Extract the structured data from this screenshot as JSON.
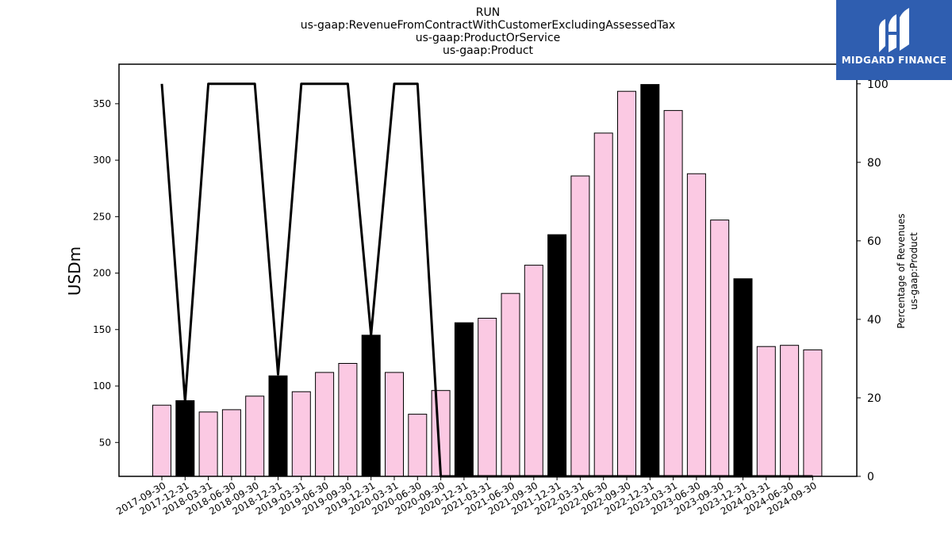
{
  "title_lines": [
    "RUN",
    "us-gaap:RevenueFromContractWithCustomerExcludingAssessedTax",
    "us-gaap:ProductOrService",
    "us-gaap:Product"
  ],
  "logo": {
    "text": "MIDGARD FINANCE",
    "icon": "midgard-logo-icon",
    "bg_color": "#2f5eb0"
  },
  "chart_data": {
    "type": "bar",
    "title": "RUN\nus-gaap:RevenueFromContractWithCustomerExcludingAssessedTax\nus-gaap:ProductOrService\nus-gaap:Product",
    "ylabel": "USDm",
    "y2label_lines": [
      "Percentage of Revenues",
      "us-gaap:Product"
    ],
    "ylim": [
      20,
      385
    ],
    "y2lim": [
      0,
      105
    ],
    "yticks": [
      50,
      100,
      150,
      200,
      250,
      300,
      350
    ],
    "y2ticks": [
      0,
      20,
      40,
      60,
      80,
      100
    ],
    "categories": [
      "2017-09-30",
      "2017-12-31",
      "2018-03-31",
      "2018-06-30",
      "2018-09-30",
      "2018-12-31",
      "2019-03-31",
      "2019-06-30",
      "2019-09-30",
      "2019-12-31",
      "2020-03-31",
      "2020-06-30",
      "2020-09-30",
      "2020-12-31",
      "2021-03-31",
      "2021-06-30",
      "2021-09-30",
      "2021-12-31",
      "2022-03-31",
      "2022-06-30",
      "2022-09-30",
      "2022-12-31",
      "2023-03-31",
      "2023-06-30",
      "2023-09-30",
      "2023-12-31",
      "2024-03-31",
      "2024-06-30",
      "2024-09-30"
    ],
    "series": [
      {
        "type": "bar",
        "values": [
          83,
          87,
          77,
          79,
          91,
          109,
          95,
          112,
          120,
          145,
          112,
          75,
          96,
          156,
          160,
          182,
          207,
          234,
          286,
          324,
          361,
          367,
          344,
          288,
          247,
          195,
          135,
          136,
          132
        ],
        "highlight": [
          false,
          true,
          false,
          false,
          false,
          true,
          false,
          false,
          false,
          true,
          false,
          false,
          false,
          true,
          false,
          false,
          false,
          true,
          false,
          false,
          false,
          true,
          false,
          false,
          false,
          true,
          false,
          false,
          false
        ],
        "color": "#fbc9e3",
        "highlight_color": "#000000"
      },
      {
        "type": "line",
        "axis": "right",
        "values": [
          100,
          19,
          100,
          100,
          100,
          26,
          100,
          100,
          100,
          36,
          100,
          100,
          0,
          0,
          0,
          0,
          0,
          0,
          0,
          0,
          0,
          0,
          0,
          0,
          0,
          0,
          0,
          0,
          0
        ],
        "color": "#000000"
      }
    ],
    "grid": false,
    "legend": "none"
  }
}
